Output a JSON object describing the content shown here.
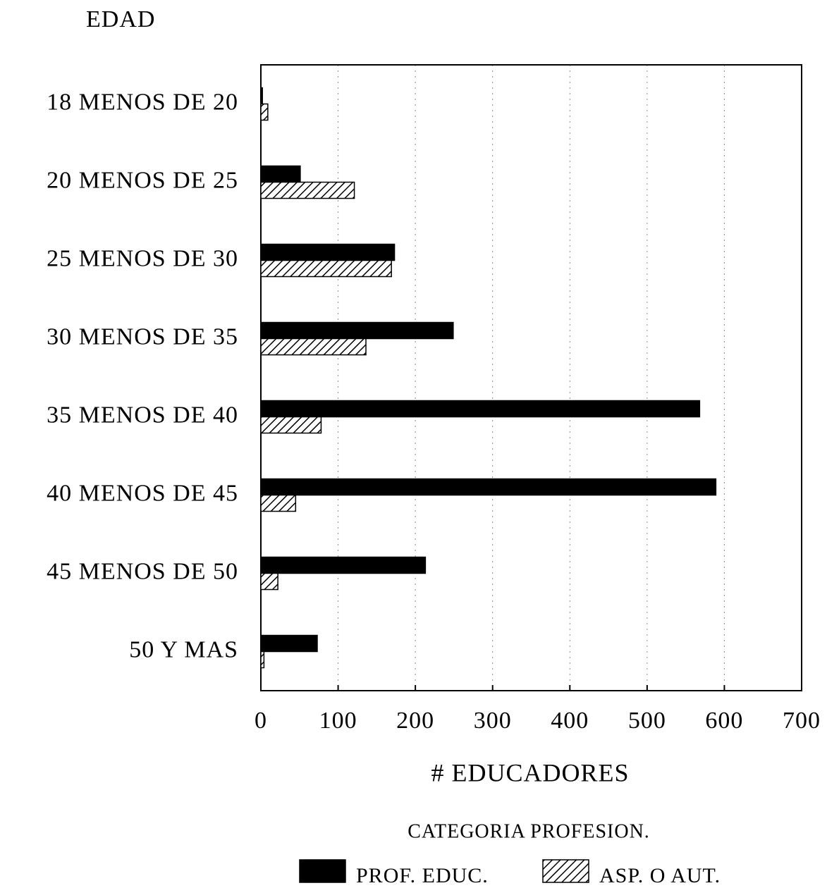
{
  "chart_data": {
    "type": "barh",
    "y_label": "EDAD",
    "x_label": "# EDUCADORES",
    "legend_title": "CATEGORIA PROFESION.",
    "categories": [
      "18 MENOS DE 20",
      "20 MENOS DE 25",
      "25 MENOS DE 30",
      "30 MENOS DE 35",
      "35 MENOS DE 40",
      "40 MENOS DE 45",
      "45 MENOS DE 50",
      "50 Y MAS"
    ],
    "series": [
      {
        "name": "PROF. EDUC.",
        "color": "#000000",
        "pattern": "solid",
        "values": [
          2,
          51,
          173,
          249,
          568,
          589,
          213,
          73
        ]
      },
      {
        "name": "ASP. O AUT.",
        "color": "#000000",
        "pattern": "hatch",
        "values": [
          9,
          121,
          169,
          136,
          78,
          45,
          22,
          4
        ]
      }
    ],
    "xlim": [
      0,
      700
    ],
    "xticks": [
      0,
      100,
      200,
      300,
      400,
      500,
      600,
      700
    ],
    "grid": true
  }
}
